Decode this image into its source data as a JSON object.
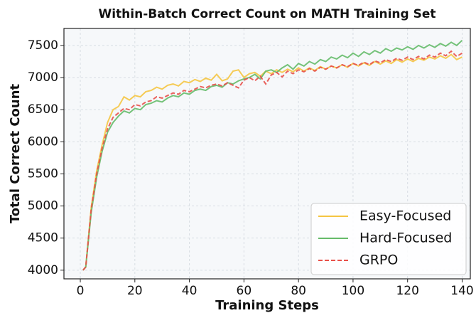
{
  "chart_data": {
    "type": "line",
    "title": "Within-Batch Correct Count on MATH Training Set",
    "xlabel": "Training Steps",
    "ylabel": "Total Correct Count",
    "x": [
      1,
      2,
      4,
      6,
      8,
      10,
      12,
      14,
      16,
      18,
      20,
      22,
      24,
      26,
      28,
      30,
      32,
      34,
      36,
      38,
      40,
      42,
      44,
      46,
      48,
      50,
      52,
      54,
      56,
      58,
      60,
      62,
      64,
      66,
      68,
      70,
      72,
      74,
      76,
      78,
      80,
      82,
      84,
      86,
      88,
      90,
      92,
      94,
      96,
      98,
      100,
      102,
      104,
      106,
      108,
      110,
      112,
      114,
      116,
      118,
      120,
      122,
      124,
      126,
      128,
      130,
      132,
      134,
      136,
      138,
      140
    ],
    "series": [
      {
        "name": "Easy-Focused",
        "color": "#f5c542",
        "dash": false,
        "values": [
          4000,
          4050,
          4980,
          5550,
          5950,
          6300,
          6500,
          6550,
          6700,
          6650,
          6720,
          6700,
          6780,
          6800,
          6850,
          6820,
          6880,
          6900,
          6870,
          6940,
          6920,
          6970,
          6940,
          6990,
          6960,
          7050,
          6950,
          6980,
          7100,
          7120,
          7000,
          7060,
          7080,
          7020,
          7100,
          7060,
          7120,
          7080,
          7130,
          7090,
          7150,
          7100,
          7150,
          7110,
          7170,
          7130,
          7180,
          7150,
          7200,
          7160,
          7220,
          7180,
          7230,
          7190,
          7250,
          7210,
          7260,
          7220,
          7280,
          7240,
          7290,
          7250,
          7300,
          7270,
          7320,
          7290,
          7340,
          7300,
          7360,
          7280,
          7320
        ]
      },
      {
        "name": "Hard-Focused",
        "color": "#66bb6a",
        "dash": false,
        "values": [
          4000,
          4050,
          4900,
          5450,
          5850,
          6150,
          6300,
          6400,
          6480,
          6450,
          6520,
          6500,
          6580,
          6600,
          6640,
          6620,
          6680,
          6720,
          6700,
          6760,
          6740,
          6800,
          6820,
          6800,
          6860,
          6880,
          6850,
          6920,
          6900,
          6950,
          6980,
          7000,
          7050,
          6980,
          7100,
          7120,
          7080,
          7150,
          7200,
          7130,
          7220,
          7180,
          7250,
          7210,
          7280,
          7250,
          7320,
          7290,
          7350,
          7310,
          7380,
          7330,
          7400,
          7360,
          7420,
          7380,
          7450,
          7410,
          7460,
          7430,
          7480,
          7440,
          7500,
          7460,
          7510,
          7470,
          7530,
          7490,
          7550,
          7500,
          7580
        ]
      },
      {
        "name": "GRPO",
        "color": "#e8504a",
        "dash": true,
        "values": [
          4000,
          4050,
          4950,
          5500,
          5900,
          6200,
          6380,
          6450,
          6520,
          6500,
          6580,
          6560,
          6620,
          6640,
          6700,
          6680,
          6720,
          6760,
          6740,
          6800,
          6780,
          6820,
          6860,
          6840,
          6880,
          6900,
          6870,
          6920,
          6880,
          6840,
          6960,
          7000,
          6950,
          7020,
          6900,
          7040,
          7080,
          7010,
          7100,
          7060,
          7120,
          7090,
          7140,
          7100,
          7160,
          7130,
          7180,
          7150,
          7200,
          7170,
          7220,
          7190,
          7240,
          7200,
          7260,
          7230,
          7280,
          7250,
          7300,
          7270,
          7320,
          7280,
          7330,
          7290,
          7350,
          7320,
          7380,
          7340,
          7410,
          7330,
          7380
        ]
      }
    ],
    "xlim": [
      -6,
      143
    ],
    "ylim": [
      3865,
      7765
    ],
    "xticks": [
      0,
      20,
      40,
      60,
      80,
      100,
      120,
      140
    ],
    "yticks": [
      4000,
      4500,
      5000,
      5500,
      6000,
      6500,
      7000,
      7500
    ],
    "grid": true,
    "legend": "lower right"
  }
}
